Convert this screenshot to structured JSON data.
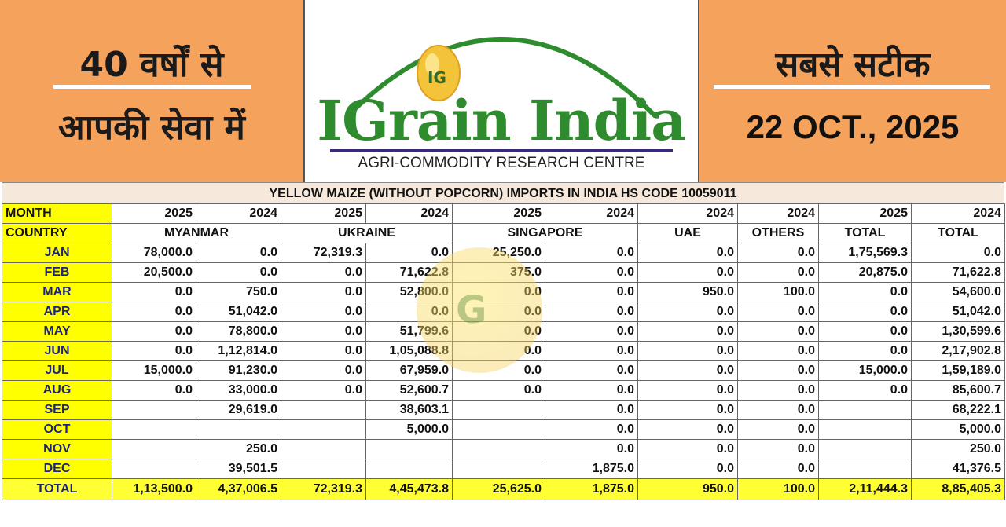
{
  "banner": {
    "left_line1": "40 वर्षों से",
    "left_line2": "आपकी सेवा में",
    "right_line1": "सबसे सटीक",
    "date": "22 OCT., 2025",
    "logo_title": "IGrain India",
    "logo_subtitle": "AGRI-COMMODITY RESEARCH CENTRE",
    "logo_icon": "ig-grain-emblem",
    "logo_badge": "IG"
  },
  "table": {
    "title": "YELLOW MAIZE (WITHOUT POPCORN) IMPORTS IN INDIA HS CODE 10059011",
    "month_label": "MONTH",
    "country_label": "COUNTRY",
    "years": [
      "2025",
      "2024",
      "2025",
      "2024",
      "2025",
      "2024",
      "2024",
      "2024",
      "2025",
      "2024"
    ],
    "countries": {
      "myanmar": "MYANMAR",
      "ukraine": "UKRAINE",
      "singapore": "SINGAPORE",
      "uae": "UAE",
      "others": "OTHERS",
      "total_2025": "TOTAL",
      "total_2024": "TOTAL"
    },
    "rows": [
      {
        "month": "JAN",
        "v": [
          "78,000.0",
          "0.0",
          "72,319.3",
          "0.0",
          "25,250.0",
          "0.0",
          "0.0",
          "0.0",
          "1,75,569.3",
          "0.0"
        ]
      },
      {
        "month": "FEB",
        "v": [
          "20,500.0",
          "0.0",
          "0.0",
          "71,622.8",
          "375.0",
          "0.0",
          "0.0",
          "0.0",
          "20,875.0",
          "71,622.8"
        ]
      },
      {
        "month": "MAR",
        "v": [
          "0.0",
          "750.0",
          "0.0",
          "52,800.0",
          "0.0",
          "0.0",
          "950.0",
          "100.0",
          "0.0",
          "54,600.0"
        ]
      },
      {
        "month": "APR",
        "v": [
          "0.0",
          "51,042.0",
          "0.0",
          "0.0",
          "0.0",
          "0.0",
          "0.0",
          "0.0",
          "0.0",
          "51,042.0"
        ]
      },
      {
        "month": "MAY",
        "v": [
          "0.0",
          "78,800.0",
          "0.0",
          "51,799.6",
          "0.0",
          "0.0",
          "0.0",
          "0.0",
          "0.0",
          "1,30,599.6"
        ]
      },
      {
        "month": "JUN",
        "v": [
          "0.0",
          "1,12,814.0",
          "0.0",
          "1,05,088.8",
          "0.0",
          "0.0",
          "0.0",
          "0.0",
          "0.0",
          "2,17,902.8"
        ]
      },
      {
        "month": "JUL",
        "v": [
          "15,000.0",
          "91,230.0",
          "0.0",
          "67,959.0",
          "0.0",
          "0.0",
          "0.0",
          "0.0",
          "15,000.0",
          "1,59,189.0"
        ]
      },
      {
        "month": "AUG",
        "v": [
          "0.0",
          "33,000.0",
          "0.0",
          "52,600.7",
          "0.0",
          "0.0",
          "0.0",
          "0.0",
          "0.0",
          "85,600.7"
        ]
      },
      {
        "month": "SEP",
        "v": [
          "",
          "29,619.0",
          "",
          "38,603.1",
          "",
          "0.0",
          "0.0",
          "0.0",
          "",
          "68,222.1"
        ]
      },
      {
        "month": "OCT",
        "v": [
          "",
          "",
          "",
          "5,000.0",
          "",
          "0.0",
          "0.0",
          "0.0",
          "",
          "5,000.0"
        ]
      },
      {
        "month": "NOV",
        "v": [
          "",
          "250.0",
          "",
          "",
          "",
          "0.0",
          "0.0",
          "0.0",
          "",
          "250.0"
        ]
      },
      {
        "month": "DEC",
        "v": [
          "",
          "39,501.5",
          "",
          "",
          "",
          "1,875.0",
          "0.0",
          "0.0",
          "",
          "41,376.5"
        ]
      }
    ],
    "total": {
      "month": "TOTAL",
      "v": [
        "1,13,500.0",
        "4,37,006.5",
        "72,319.3",
        "4,45,473.8",
        "25,625.0",
        "1,875.0",
        "950.0",
        "100.0",
        "2,11,444.3",
        "8,85,405.3"
      ]
    }
  }
}
